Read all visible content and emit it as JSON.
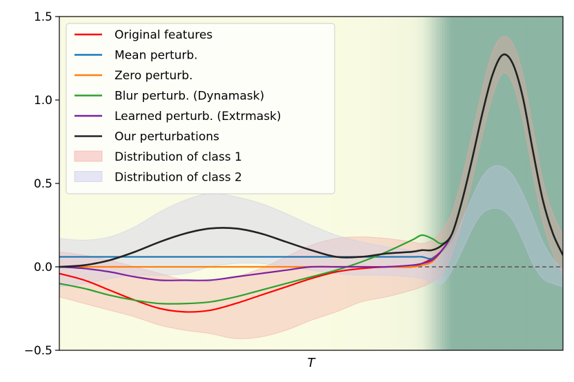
{
  "chart_data": {
    "type": "line",
    "title": "",
    "xlabel": "T",
    "ylabel": "",
    "xlim": [
      0,
      100
    ],
    "ylim": [
      -0.5,
      1.5
    ],
    "yticks": [
      -0.5,
      0.0,
      0.5,
      1.0,
      1.5
    ],
    "ytick_labels": [
      "−0.5",
      "0.0",
      "0.5",
      "1.0",
      "1.5"
    ],
    "grid": false,
    "legend_position": "top-left",
    "reference_line": {
      "y": 0.0,
      "style": "dashed",
      "color": "#555555"
    },
    "x": [
      0,
      5,
      10,
      15,
      20,
      25,
      30,
      35,
      40,
      45,
      50,
      55,
      60,
      65,
      70,
      72,
      74,
      76,
      78,
      80,
      82,
      84,
      86,
      88,
      90,
      92,
      94,
      96,
      98,
      100
    ],
    "series": [
      {
        "name": "Original features",
        "color": "#ff0000",
        "values": [
          -0.04,
          -0.08,
          -0.14,
          -0.2,
          -0.25,
          -0.27,
          -0.26,
          -0.22,
          -0.17,
          -0.12,
          -0.07,
          -0.03,
          -0.01,
          0.0,
          0.0,
          0.02,
          0.05,
          0.1,
          0.2,
          0.4,
          0.65,
          0.92,
          1.15,
          1.27,
          1.22,
          1.02,
          0.7,
          0.4,
          0.2,
          0.07
        ]
      },
      {
        "name": "Mean perturb.",
        "color": "#1f77b4",
        "values": [
          0.06,
          0.06,
          0.06,
          0.06,
          0.06,
          0.06,
          0.06,
          0.06,
          0.06,
          0.06,
          0.06,
          0.06,
          0.06,
          0.06,
          0.06,
          0.06,
          0.05,
          0.1,
          0.2,
          0.4,
          0.65,
          0.92,
          1.15,
          1.27,
          1.22,
          1.02,
          0.7,
          0.4,
          0.2,
          0.07
        ]
      },
      {
        "name": "Zero perturb.",
        "color": "#ff7f0e",
        "values": [
          0.0,
          0.0,
          0.0,
          0.0,
          0.0,
          0.0,
          0.0,
          0.0,
          0.0,
          0.0,
          0.0,
          0.0,
          0.0,
          0.0,
          0.0,
          0.01,
          0.03,
          0.1,
          0.2,
          0.4,
          0.65,
          0.92,
          1.15,
          1.27,
          1.22,
          1.02,
          0.7,
          0.4,
          0.2,
          0.07
        ]
      },
      {
        "name": "Blur perturb. (Dynamask)",
        "color": "#2ca02c",
        "values": [
          -0.1,
          -0.13,
          -0.17,
          -0.2,
          -0.22,
          -0.22,
          -0.21,
          -0.18,
          -0.14,
          -0.1,
          -0.06,
          -0.02,
          0.03,
          0.09,
          0.16,
          0.19,
          0.17,
          0.14,
          0.2,
          0.4,
          0.65,
          0.92,
          1.15,
          1.27,
          1.22,
          1.02,
          0.7,
          0.4,
          0.2,
          0.07
        ]
      },
      {
        "name": "Learned perturb. (Extrmask)",
        "color": "#7b1fa2",
        "values": [
          0.0,
          -0.01,
          -0.03,
          -0.06,
          -0.08,
          -0.08,
          -0.08,
          -0.06,
          -0.04,
          -0.02,
          0.0,
          0.0,
          0.0,
          0.0,
          0.01,
          0.02,
          0.04,
          0.1,
          0.2,
          0.4,
          0.65,
          0.92,
          1.15,
          1.27,
          1.22,
          1.02,
          0.7,
          0.4,
          0.2,
          0.07
        ]
      },
      {
        "name": "Our perturbations",
        "color": "#222222",
        "values": [
          0.0,
          0.01,
          0.04,
          0.09,
          0.15,
          0.2,
          0.23,
          0.23,
          0.2,
          0.15,
          0.1,
          0.06,
          0.06,
          0.08,
          0.09,
          0.1,
          0.1,
          0.13,
          0.2,
          0.4,
          0.65,
          0.92,
          1.15,
          1.27,
          1.22,
          1.02,
          0.7,
          0.4,
          0.2,
          0.07
        ]
      }
    ],
    "bands": [
      {
        "name": "Distribution of class 1",
        "color": "#f4a6a0",
        "opacity": 0.35,
        "lower": [
          -0.18,
          -0.22,
          -0.26,
          -0.3,
          -0.35,
          -0.38,
          -0.4,
          -0.43,
          -0.42,
          -0.38,
          -0.32,
          -0.27,
          -0.21,
          -0.18,
          -0.14,
          -0.12,
          -0.09,
          -0.04,
          0.08,
          0.27,
          0.52,
          0.79,
          1.02,
          1.16,
          1.1,
          0.88,
          0.56,
          0.27,
          0.08,
          -0.05
        ],
        "upper": [
          0.09,
          0.07,
          0.04,
          0.0,
          -0.04,
          -0.08,
          -0.09,
          -0.06,
          -0.01,
          0.06,
          0.13,
          0.17,
          0.18,
          0.17,
          0.15,
          0.14,
          0.16,
          0.22,
          0.33,
          0.54,
          0.8,
          1.07,
          1.29,
          1.38,
          1.34,
          1.16,
          0.84,
          0.52,
          0.32,
          0.19
        ]
      },
      {
        "name": "Distribution of class 2",
        "color": "#c8c8ee",
        "opacity": 0.35,
        "lower": [
          -0.12,
          -0.1,
          -0.07,
          -0.05,
          -0.05,
          -0.04,
          0.0,
          0.02,
          0.02,
          0.0,
          -0.02,
          -0.04,
          -0.05,
          -0.05,
          -0.06,
          -0.07,
          -0.09,
          -0.1,
          -0.02,
          0.1,
          0.23,
          0.32,
          0.35,
          0.34,
          0.28,
          0.16,
          0.02,
          -0.07,
          -0.1,
          -0.12
        ],
        "upper": [
          0.17,
          0.16,
          0.18,
          0.24,
          0.33,
          0.4,
          0.44,
          0.42,
          0.38,
          0.32,
          0.25,
          0.19,
          0.15,
          0.12,
          0.1,
          0.09,
          0.08,
          0.08,
          0.15,
          0.28,
          0.42,
          0.54,
          0.6,
          0.6,
          0.55,
          0.44,
          0.3,
          0.15,
          0.05,
          -0.02
        ]
      }
    ],
    "saliency_background": {
      "description_colormap": "yellow-green",
      "x": [
        0,
        10,
        20,
        30,
        40,
        50,
        60,
        65,
        70,
        72,
        73,
        74,
        75,
        76,
        77,
        78,
        80,
        85,
        90,
        95,
        100
      ],
      "intensity": [
        0.05,
        0.05,
        0.05,
        0.05,
        0.05,
        0.05,
        0.06,
        0.08,
        0.12,
        0.18,
        0.3,
        0.45,
        0.6,
        0.75,
        0.9,
        1.0,
        1.0,
        1.0,
        1.0,
        1.0,
        1.0
      ]
    }
  }
}
